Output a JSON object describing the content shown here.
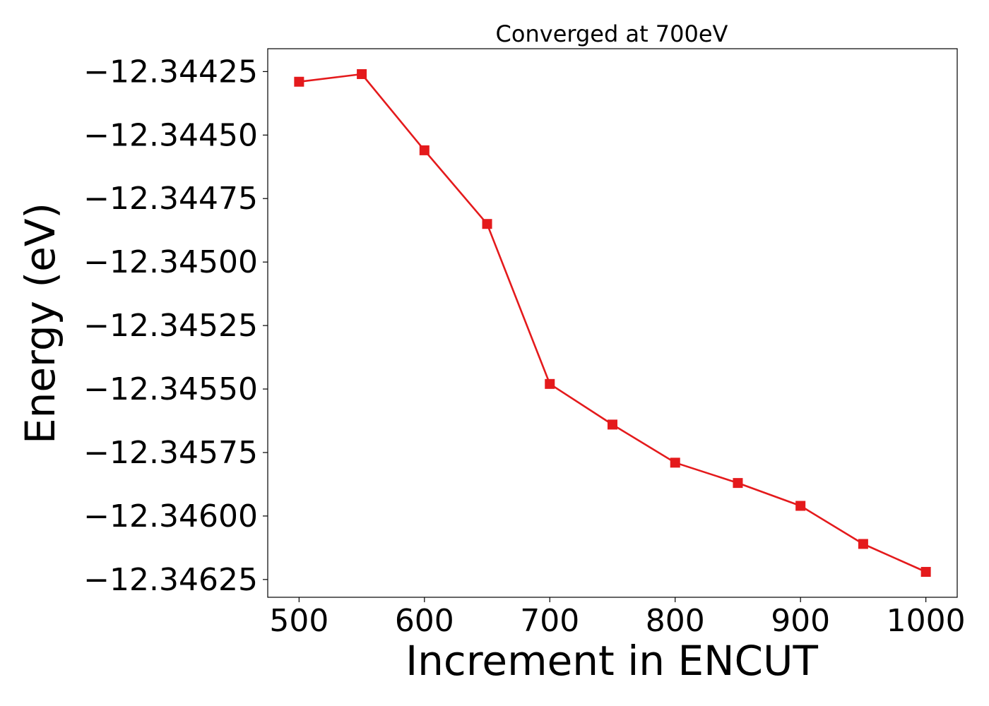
{
  "chart_data": {
    "type": "line",
    "title": "Converged at 700eV",
    "xlabel": "Increment in ENCUT",
    "ylabel": "Energy (eV)",
    "xlim": [
      475,
      1025
    ],
    "ylim": [
      -12.34632,
      -12.34416
    ],
    "x_ticks": [
      500,
      600,
      700,
      800,
      900,
      1000
    ],
    "x_tick_labels": [
      "500",
      "600",
      "700",
      "800",
      "900",
      "1000"
    ],
    "y_ticks": [
      -12.34425,
      -12.3445,
      -12.34475,
      -12.345,
      -12.34525,
      -12.3455,
      -12.34575,
      -12.346,
      -12.34625
    ],
    "y_tick_labels": [
      "−12.34425",
      "−12.34450",
      "−12.34475",
      "−12.34500",
      "−12.34525",
      "−12.34550",
      "−12.34575",
      "−12.34600",
      "−12.34625"
    ],
    "grid": false,
    "series": [
      {
        "color": "#e41a1c",
        "marker": "square",
        "x": [
          500,
          550,
          600,
          650,
          700,
          750,
          800,
          850,
          900,
          950,
          1000
        ],
        "y": [
          -12.34429,
          -12.34426,
          -12.34456,
          -12.34485,
          -12.34548,
          -12.34564,
          -12.34579,
          -12.34587,
          -12.34596,
          -12.34611,
          -12.34622
        ]
      }
    ]
  }
}
